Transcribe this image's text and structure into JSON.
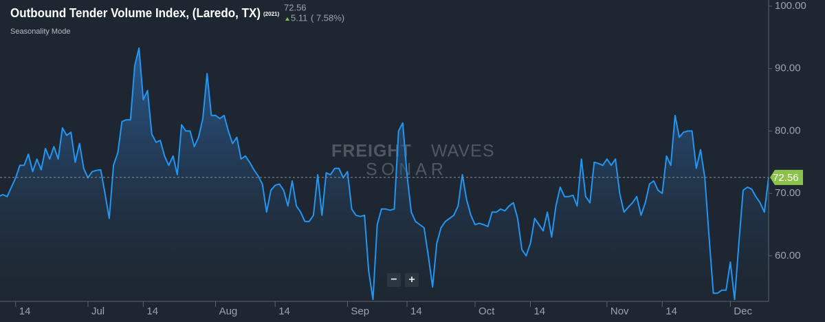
{
  "chart_data": {
    "type": "line",
    "title": "Outbound Tender Volume Index, (Laredo, TX)",
    "title_tag": "(2021)",
    "subtitle": "Seasonality Mode",
    "header_value": 72.56,
    "header_change": 5.11,
    "header_change_label": "( 7.58%)",
    "watermark": [
      "FREIGHT",
      "WAVES",
      "SONAR"
    ],
    "controls": [
      "−",
      "+"
    ],
    "categories": [
      null,
      null,
      null,
      null,
      "14",
      null,
      null,
      null,
      null,
      null,
      null,
      null,
      null,
      null,
      null,
      null,
      null,
      null,
      null,
      null,
      null,
      "Jul",
      null,
      null,
      null,
      null,
      null,
      null,
      null,
      null,
      null,
      null,
      null,
      null,
      "14",
      null,
      null,
      null,
      null,
      null,
      null,
      null,
      null,
      null,
      null,
      null,
      null,
      null,
      null,
      null,
      null,
      "Aug",
      null,
      null,
      null,
      null,
      null,
      null,
      null,
      null,
      null,
      null,
      null,
      null,
      null,
      "14",
      null,
      null,
      null,
      null,
      null,
      null,
      null,
      null,
      null,
      null,
      null,
      null,
      null,
      null,
      null,
      null,
      "Sep",
      null,
      null,
      null,
      null,
      null,
      null,
      null,
      null,
      null,
      null,
      null,
      null,
      null,
      "14",
      null,
      null,
      null,
      null,
      null,
      null,
      null,
      null,
      null,
      null,
      null,
      null,
      null,
      null,
      null,
      "Oct",
      null,
      null,
      null,
      null,
      null,
      null,
      null,
      null,
      null,
      null,
      null,
      null,
      "14",
      null,
      null,
      null,
      null,
      null,
      null,
      null,
      null,
      null,
      null,
      null,
      null,
      null,
      null,
      null,
      null,
      null,
      "Nov",
      null,
      null,
      null,
      null,
      null,
      null,
      null,
      null,
      null,
      null,
      null,
      null,
      "14",
      null,
      null,
      null,
      null,
      null,
      null,
      null,
      null,
      null,
      null,
      null,
      null,
      null,
      null,
      null,
      "Dec",
      null,
      null,
      null,
      null,
      null,
      null,
      null,
      null,
      null
    ],
    "series": [
      {
        "name": "Outbound Tender Volume Index",
        "color": "#2196f3",
        "values": [
          69.5,
          69.8,
          69.5,
          71,
          72.5,
          74.5,
          74.5,
          76.3,
          73.5,
          75.5,
          73.8,
          77.2,
          75.5,
          77.5,
          75.5,
          80.5,
          79.3,
          79.8,
          75,
          78,
          74,
          72.5,
          73.5,
          73.7,
          73.8,
          70,
          66,
          74.5,
          76.5,
          81.5,
          81.8,
          81.8,
          90.5,
          93.3,
          85,
          86.5,
          79.5,
          78.2,
          78.5,
          76,
          74.5,
          76,
          73,
          81,
          80,
          80,
          77.5,
          79,
          82,
          89.2,
          82.5,
          82.5,
          82,
          82.5,
          80,
          78,
          79,
          75.5,
          76,
          75,
          73.8,
          72.8,
          71.5,
          67,
          70.5,
          71.3,
          71.5,
          70.5,
          68,
          72,
          68,
          67,
          65.5,
          65.5,
          66.5,
          73,
          66.5,
          73.3,
          73,
          74,
          74,
          72.5,
          73.5,
          67.5,
          66.5,
          66.3,
          66.5,
          57.5,
          53,
          65,
          67.5,
          67.5,
          67.3,
          67.5,
          80,
          81.3,
          73,
          67,
          65.5,
          65,
          64.5,
          60,
          55,
          62,
          64.5,
          65.5,
          66,
          66.5,
          68,
          73,
          69,
          66.5,
          65,
          65.2,
          65,
          64.7,
          67,
          67,
          67.5,
          67.2,
          68,
          68.5,
          66,
          61,
          60,
          62,
          66,
          65,
          64,
          67,
          63,
          68,
          71,
          69.5,
          69.5,
          69.7,
          68,
          75.5,
          69.5,
          68.5,
          75,
          74.8,
          74.5,
          75.5,
          74.5,
          75.5,
          70,
          67,
          67.8,
          68.5,
          69.5,
          66.5,
          68.5,
          71.5,
          72,
          70.5,
          70,
          76,
          74.5,
          82.5,
          79,
          79.8,
          80,
          80,
          74,
          77,
          72.5,
          63,
          54,
          54,
          54.5,
          54.5,
          59,
          53,
          62,
          70.5,
          71,
          70.7,
          69.5,
          68.5,
          67,
          72.56
        ]
      }
    ],
    "ylim": [
      52.7,
      101
    ],
    "yticks": [
      {
        "value": 60,
        "label": "60.00"
      },
      {
        "value": 70,
        "label": "70.00"
      },
      {
        "value": 80,
        "label": "80.00"
      },
      {
        "value": 90,
        "label": "90.00"
      },
      {
        "value": 100,
        "label": "100.00"
      }
    ],
    "grid": false,
    "last_value_badge_color": "#8bc34a"
  }
}
